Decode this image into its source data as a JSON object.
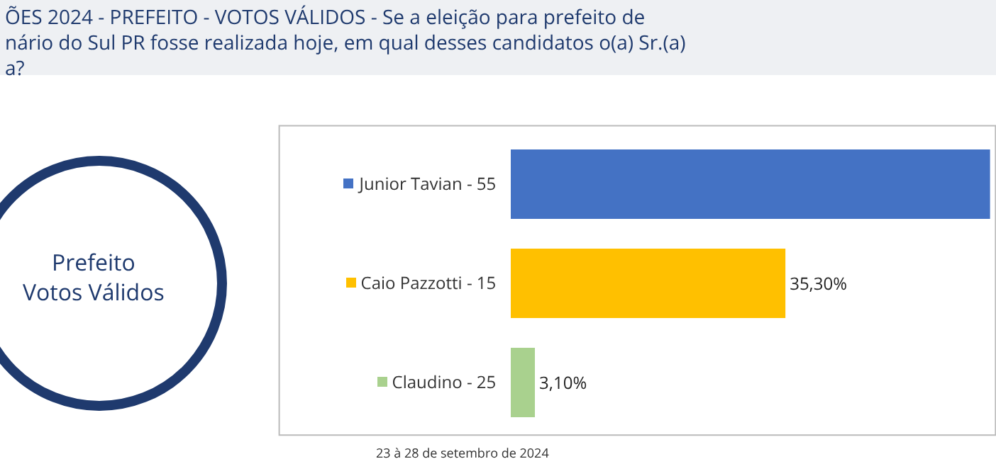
{
  "chart_data": {
    "type": "bar",
    "orientation": "horizontal",
    "title": "ÕES 2024 - PREFEITO - VOTOS VÁLIDOS - Se a eleição para prefeito de\nnário do Sul PR fosse realizada hoje, em qual desses candidatos o(a) Sr.(a)\na?",
    "categories": [
      "Junior Tavian - 55",
      "Caio Pazzotti - 15",
      "Claudino - 25"
    ],
    "values": [
      61.6,
      35.3,
      3.1
    ],
    "colors": [
      "#4472c4",
      "#ffc000",
      "#a9d18e"
    ],
    "value_labels": [
      null,
      "35,30%",
      "3,10%"
    ],
    "xlim": [
      0,
      62
    ],
    "tick_labels": "y",
    "annotations": [
      "Prefeito\nVotos Válidos",
      "23 à 28 de setembro de 2024"
    ]
  }
}
